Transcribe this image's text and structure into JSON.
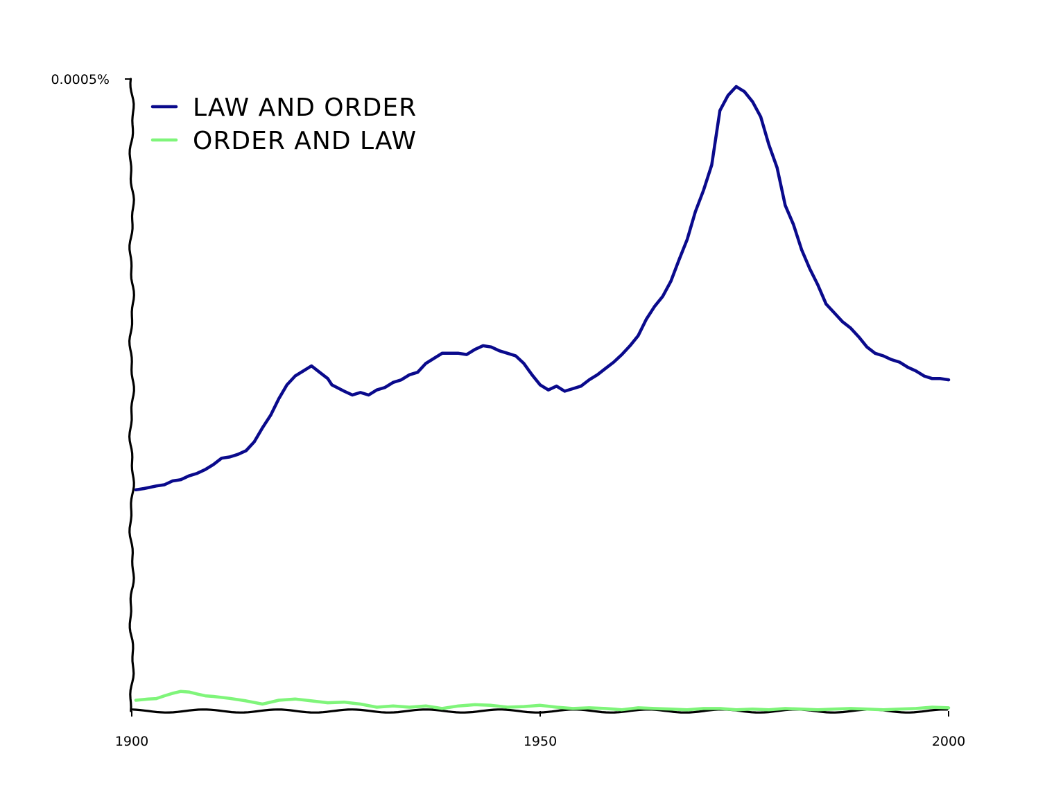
{
  "chart_data": {
    "type": "line",
    "title": "",
    "xlabel": "",
    "ylabel": "",
    "xlim": [
      1900,
      2000
    ],
    "ylim": [
      0,
      0.0005
    ],
    "x_ticks": [
      {
        "value": 1900,
        "label": "1900"
      },
      {
        "value": 1950,
        "label": "1950"
      },
      {
        "value": 2000,
        "label": "2000"
      }
    ],
    "y_ticks": [
      {
        "value": 0.0005,
        "label": "0.0005%"
      }
    ],
    "legend_position": "top-left",
    "grid": false,
    "series": [
      {
        "name": "LAW AND ORDER",
        "color": "#0a0a8c",
        "points": [
          [
            1900.5,
            0.000175
          ],
          [
            1901.5,
            0.000176
          ],
          [
            1903,
            0.000178
          ],
          [
            1904,
            0.000179
          ],
          [
            1905,
            0.000182
          ],
          [
            1906,
            0.000183
          ],
          [
            1907,
            0.000186
          ],
          [
            1908,
            0.000188
          ],
          [
            1909,
            0.000191
          ],
          [
            1910,
            0.000195
          ],
          [
            1911,
            0.0002
          ],
          [
            1912,
            0.000201
          ],
          [
            1913,
            0.000203
          ],
          [
            1914,
            0.000206
          ],
          [
            1915,
            0.000213
          ],
          [
            1916,
            0.000224
          ],
          [
            1917,
            0.000234
          ],
          [
            1918,
            0.000247
          ],
          [
            1919,
            0.000258
          ],
          [
            1920,
            0.000265
          ],
          [
            1921,
            0.000269
          ],
          [
            1922,
            0.000273
          ],
          [
            1923,
            0.000268
          ],
          [
            1924,
            0.000263
          ],
          [
            1924.5,
            0.000258
          ],
          [
            1926,
            0.000253
          ],
          [
            1927,
            0.00025
          ],
          [
            1928,
            0.000252
          ],
          [
            1929,
            0.00025
          ],
          [
            1930,
            0.000254
          ],
          [
            1931,
            0.000256
          ],
          [
            1932,
            0.00026
          ],
          [
            1933,
            0.000262
          ],
          [
            1934,
            0.000266
          ],
          [
            1935,
            0.000268
          ],
          [
            1936,
            0.000275
          ],
          [
            1937,
            0.000279
          ],
          [
            1938,
            0.000283
          ],
          [
            1939,
            0.000283
          ],
          [
            1940,
            0.000283
          ],
          [
            1941,
            0.000282
          ],
          [
            1942,
            0.000286
          ],
          [
            1943,
            0.000289
          ],
          [
            1944,
            0.000288
          ],
          [
            1945,
            0.000285
          ],
          [
            1946,
            0.000283
          ],
          [
            1947,
            0.000281
          ],
          [
            1948,
            0.000275
          ],
          [
            1949,
            0.000266
          ],
          [
            1950,
            0.000258
          ],
          [
            1951,
            0.000254
          ],
          [
            1952,
            0.000257
          ],
          [
            1953,
            0.000253
          ],
          [
            1954,
            0.000255
          ],
          [
            1955,
            0.000257
          ],
          [
            1956,
            0.000262
          ],
          [
            1957,
            0.000266
          ],
          [
            1958,
            0.000271
          ],
          [
            1959,
            0.000276
          ],
          [
            1960,
            0.000282
          ],
          [
            1961,
            0.000289
          ],
          [
            1962,
            0.000297
          ],
          [
            1963,
            0.00031
          ],
          [
            1964,
            0.00032
          ],
          [
            1965,
            0.000328
          ],
          [
            1966,
            0.00034
          ],
          [
            1967,
            0.000357
          ],
          [
            1968,
            0.000373
          ],
          [
            1969,
            0.000395
          ],
          [
            1970,
            0.000412
          ],
          [
            1971,
            0.000432
          ],
          [
            1972,
            0.000475
          ],
          [
            1973,
            0.000487
          ],
          [
            1974,
            0.000494
          ],
          [
            1975,
            0.00049
          ],
          [
            1976,
            0.000482
          ],
          [
            1977,
            0.00047
          ],
          [
            1978,
            0.000448
          ],
          [
            1979,
            0.00043
          ],
          [
            1980,
            0.0004
          ],
          [
            1981,
            0.000385
          ],
          [
            1982,
            0.000365
          ],
          [
            1983,
            0.00035
          ],
          [
            1984,
            0.000337
          ],
          [
            1985,
            0.000322
          ],
          [
            1986,
            0.000315
          ],
          [
            1987,
            0.000308
          ],
          [
            1988,
            0.000303
          ],
          [
            1989,
            0.000296
          ],
          [
            1990,
            0.000288
          ],
          [
            1991,
            0.000283
          ],
          [
            1992,
            0.000281
          ],
          [
            1993,
            0.000278
          ],
          [
            1994,
            0.000276
          ],
          [
            1995,
            0.000272
          ],
          [
            1996,
            0.000269
          ],
          [
            1997,
            0.000265
          ],
          [
            1998,
            0.000263
          ],
          [
            1999,
            0.000263
          ],
          [
            2000,
            0.000262
          ]
        ]
      },
      {
        "name": "ORDER AND LAW",
        "color": "#7ff57a",
        "points": [
          [
            1900.5,
            8.5e-06
          ],
          [
            1902,
            9.5e-06
          ],
          [
            1903,
            9.8e-06
          ],
          [
            1904,
            1.2e-05
          ],
          [
            1905,
            1.4e-05
          ],
          [
            1906,
            1.55e-05
          ],
          [
            1907,
            1.5e-05
          ],
          [
            1908,
            1.35e-05
          ],
          [
            1909,
            1.2e-05
          ],
          [
            1910,
            1.15e-05
          ],
          [
            1912,
            1e-05
          ],
          [
            1914,
            8e-06
          ],
          [
            1916,
            5.5e-06
          ],
          [
            1918,
            8.5e-06
          ],
          [
            1920,
            9.5e-06
          ],
          [
            1922,
            8e-06
          ],
          [
            1924,
            6.5e-06
          ],
          [
            1926,
            7e-06
          ],
          [
            1928,
            5.5e-06
          ],
          [
            1930,
            3e-06
          ],
          [
            1932,
            4e-06
          ],
          [
            1934,
            3e-06
          ],
          [
            1936,
            4e-06
          ],
          [
            1938,
            2e-06
          ],
          [
            1940,
            4e-06
          ],
          [
            1942,
            5e-06
          ],
          [
            1944,
            4.5e-06
          ],
          [
            1946,
            3e-06
          ],
          [
            1948,
            3.5e-06
          ],
          [
            1950,
            4.5e-06
          ],
          [
            1952,
            3e-06
          ],
          [
            1954,
            2e-06
          ],
          [
            1956,
            2.5e-06
          ],
          [
            1958,
            2e-06
          ],
          [
            1960,
            1e-06
          ],
          [
            1962,
            2.5e-06
          ],
          [
            1964,
            2e-06
          ],
          [
            1966,
            1.5e-06
          ],
          [
            1968,
            1e-06
          ],
          [
            1970,
            2e-06
          ],
          [
            1972,
            2e-06
          ],
          [
            1974,
            1e-06
          ],
          [
            1976,
            1.5e-06
          ],
          [
            1978,
            1e-06
          ],
          [
            1980,
            2e-06
          ],
          [
            1982,
            1.5e-06
          ],
          [
            1984,
            1e-06
          ],
          [
            1986,
            1.5e-06
          ],
          [
            1988,
            2e-06
          ],
          [
            1990,
            1.5e-06
          ],
          [
            1992,
            1e-06
          ],
          [
            1994,
            1.5e-06
          ],
          [
            1996,
            2e-06
          ],
          [
            1998,
            3e-06
          ],
          [
            2000,
            2.5e-06
          ]
        ]
      }
    ]
  }
}
